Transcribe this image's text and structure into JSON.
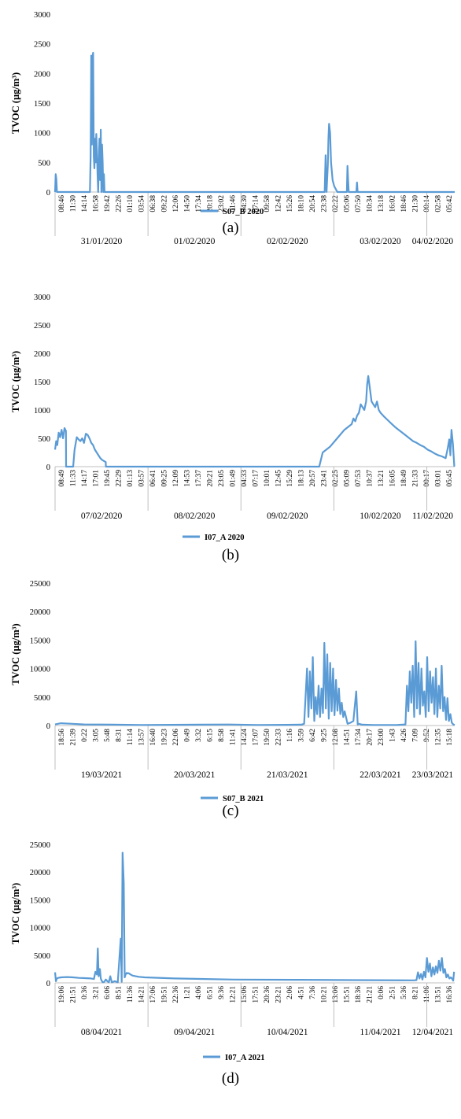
{
  "chart_data": [
    {
      "type": "line",
      "ylabel": "TVOC (µg/m³)",
      "ylim": [
        0,
        3000
      ],
      "yticks": [
        "0",
        "500",
        "1000",
        "1500",
        "2000",
        "2500",
        "3000"
      ],
      "x_hours": [
        "08:46",
        "11:30",
        "14:14",
        "16:58",
        "19:42",
        "22:26",
        "01:10",
        "03:54",
        "06:38",
        "09:22",
        "12:06",
        "14:50",
        "17:34",
        "20:18",
        "23:02",
        "01:46",
        "04:30",
        "07:14",
        "09:58",
        "12:42",
        "15:26",
        "18:10",
        "20:54",
        "23:38",
        "02:22",
        "05:06",
        "07:50",
        "10:34",
        "13:18",
        "16:02",
        "18:46",
        "21:30",
        "00:14",
        "02:58",
        "05:42"
      ],
      "x_dates": [
        "31/01/2020",
        "01/02/2020",
        "02/02/2020",
        "03/02/2020",
        "04/02/2020"
      ],
      "series": [
        {
          "name": "S07_B 2020",
          "color": "#5b9bd5",
          "x": [
            0,
            0.2,
            0.4,
            0.6,
            11,
            11.2,
            11.4,
            11.6,
            11.8,
            12,
            12.1,
            12.2,
            12.4,
            12.6,
            12.8,
            13,
            13.2,
            13.4,
            13.6,
            13.8,
            14,
            14.2,
            14.4,
            14.6,
            14.8,
            15,
            15.2,
            15.4,
            15.6,
            16,
            17,
            24,
            40,
            60,
            84,
            85,
            85.3,
            85.6,
            86,
            86.2,
            86.4,
            86.7,
            87,
            87.5,
            88,
            89,
            92,
            92.2,
            92.4,
            92.6,
            95,
            95.2,
            95.4,
            100,
            110,
            126
          ],
          "y": [
            0,
            300,
            220,
            0,
            0,
            600,
            2300,
            800,
            2280,
            2350,
            1500,
            600,
            400,
            900,
            500,
            980,
            700,
            300,
            0,
            500,
            900,
            200,
            1050,
            0,
            800,
            500,
            0,
            300,
            0,
            0,
            0,
            0,
            0,
            0,
            0,
            0,
            620,
            0,
            450,
            900,
            1150,
            1000,
            500,
            200,
            100,
            0,
            0,
            440,
            200,
            0,
            0,
            160,
            0,
            0,
            0,
            0
          ]
        }
      ]
    },
    {
      "type": "line",
      "ylabel": "TVOC (µg/m³)",
      "ylim": [
        0,
        3000
      ],
      "yticks": [
        "0",
        "500",
        "1000",
        "1500",
        "2000",
        "2500",
        "3000"
      ],
      "x_hours": [
        "08:49",
        "11:33",
        "14:17",
        "17:01",
        "19:45",
        "22:29",
        "01:13",
        "03:57",
        "06:41",
        "09:25",
        "12:09",
        "14:53",
        "17:37",
        "20:21",
        "23:05",
        "01:49",
        "04:33",
        "07:17",
        "10:01",
        "12:45",
        "15:29",
        "18:13",
        "20:57",
        "23:41",
        "02:25",
        "05:09",
        "07:53",
        "10:37",
        "13:21",
        "16:05",
        "18:49",
        "21:33",
        "00:17",
        "03:01",
        "05:45"
      ],
      "x_dates": [
        "07/02/2020",
        "08/02/2020",
        "09/02/2020",
        "10/02/2020",
        "11/02/2020"
      ],
      "series": [
        {
          "name": "I07_A 2020",
          "color": "#5b9bd5",
          "x": [
            0,
            0.3,
            0.6,
            1,
            1.4,
            1.8,
            2.2,
            2.6,
            3,
            3.05,
            5,
            5.4,
            6,
            6.5,
            7,
            7.5,
            8,
            8.5,
            9,
            9.5,
            10,
            10.5,
            11,
            11.5,
            12,
            12.5,
            13,
            13.5,
            14,
            14.05,
            20,
            40,
            60,
            72,
            73,
            73.05,
            74,
            76,
            78,
            80,
            82,
            82.5,
            83,
            83.5,
            84,
            84.5,
            85,
            85.5,
            86,
            86.3,
            86.6,
            87,
            87.5,
            88,
            88.5,
            89,
            89.5,
            90,
            91,
            92,
            93,
            94,
            95,
            96,
            97,
            98,
            99,
            100,
            101,
            102,
            103,
            104,
            105,
            106,
            107,
            108,
            108.5,
            109,
            109.3,
            109.6,
            110,
            110.4
          ],
          "y": [
            300,
            450,
            380,
            600,
            520,
            650,
            500,
            680,
            630,
            0,
            0,
            300,
            520,
            480,
            450,
            500,
            420,
            580,
            560,
            500,
            420,
            380,
            300,
            250,
            200,
            150,
            120,
            100,
            80,
            0,
            0,
            0,
            0,
            0,
            0,
            0,
            250,
            350,
            500,
            650,
            750,
            850,
            800,
            900,
            950,
            1100,
            1050,
            1000,
            1150,
            1450,
            1600,
            1400,
            1150,
            1100,
            1050,
            1150,
            1000,
            950,
            880,
            820,
            760,
            700,
            650,
            600,
            550,
            500,
            450,
            420,
            380,
            350,
            300,
            270,
            230,
            200,
            180,
            150,
            300,
            480,
            200,
            650,
            400,
            0
          ]
        }
      ]
    },
    {
      "type": "line",
      "ylabel": "TVOC (µg/m³)",
      "ylim": [
        0,
        25000
      ],
      "yticks": [
        "0",
        "5000",
        "10000",
        "15000",
        "20000",
        "25000"
      ],
      "x_hours": [
        "18:56",
        "21:39",
        "0:22",
        "3:05",
        "5:48",
        "8:31",
        "11:14",
        "13:57",
        "16:40",
        "19:23",
        "22:06",
        "0:49",
        "3:32",
        "6:15",
        "8:58",
        "11:41",
        "14:24",
        "17:07",
        "19:50",
        "22:33",
        "1:16",
        "3:59",
        "6:42",
        "9:25",
        "12:08",
        "14:51",
        "17:34",
        "20:17",
        "23:00",
        "1:43",
        "4:26",
        "7:09",
        "9:52",
        "12:35",
        "15:18"
      ],
      "x_dates": [
        "19/03/2021",
        "20/03/2021",
        "21/03/2021",
        "22/03/2021",
        "23/03/2021"
      ],
      "series": [
        {
          "name": "S07_B 2021",
          "color": "#5b9bd5",
          "x": [
            0,
            2,
            6,
            10,
            20,
            30,
            40,
            50,
            60,
            70,
            80,
            85,
            86,
            87,
            87.5,
            88,
            88.5,
            89,
            89.5,
            90,
            90.5,
            91,
            91.5,
            92,
            92.5,
            93,
            93.5,
            94,
            94.5,
            95,
            95.5,
            96,
            96.5,
            97,
            97.5,
            98,
            98.5,
            99,
            99.5,
            100,
            101,
            102,
            103,
            104,
            104.5,
            105,
            106,
            110,
            115,
            118,
            121,
            121.5,
            122,
            122.5,
            123,
            123.5,
            124,
            124.5,
            125,
            125.5,
            126,
            126.5,
            127,
            127.5,
            128,
            128.5,
            129,
            129.5,
            130,
            130.5,
            131,
            131.5,
            132,
            132.5,
            133,
            133.5,
            134,
            134.5,
            135,
            135.5,
            136,
            136.5,
            137,
            137.5,
            138
          ],
          "y": [
            200,
            400,
            300,
            200,
            150,
            100,
            120,
            150,
            180,
            100,
            120,
            150,
            300,
            10000,
            1500,
            9500,
            3000,
            12000,
            800,
            5000,
            2000,
            7000,
            1500,
            6500,
            2200,
            14500,
            3000,
            12500,
            1200,
            11000,
            2500,
            10000,
            1800,
            8000,
            2600,
            6500,
            2000,
            4000,
            1500,
            2500,
            300,
            500,
            800,
            6000,
            200,
            300,
            150,
            100,
            100,
            100,
            200,
            7000,
            2500,
            9500,
            4000,
            10500,
            1500,
            14800,
            3000,
            11000,
            2000,
            10000,
            3500,
            6000,
            1500,
            12000,
            2500,
            9500,
            4000,
            8500,
            2000,
            10000,
            1500,
            7000,
            3000,
            10500,
            2500,
            5000,
            1000,
            4800,
            800,
            2000,
            500,
            200,
            100
          ]
        }
      ]
    },
    {
      "type": "line",
      "ylabel": "TVOC (µg/m³)",
      "ylim": [
        0,
        25000
      ],
      "yticks": [
        "0",
        "5000",
        "10000",
        "15000",
        "20000",
        "25000"
      ],
      "x_hours": [
        "19:06",
        "21:51",
        "0:36",
        "3:21",
        "6:06",
        "8:51",
        "11:36",
        "14:21",
        "17:06",
        "19:51",
        "22:36",
        "1:21",
        "4:06",
        "6:51",
        "9:36",
        "12:21",
        "15:06",
        "17:51",
        "20:36",
        "23:21",
        "2:06",
        "4:51",
        "7:36",
        "10:21",
        "13:06",
        "15:51",
        "18:36",
        "21:21",
        "0:06",
        "2:51",
        "5:36",
        "8:21",
        "11:06",
        "13:51",
        "16:36"
      ],
      "x_dates": [
        "08/04/2021",
        "09/04/2021",
        "10/04/2021",
        "11/04/2021",
        "12/04/2021"
      ],
      "series": [
        {
          "name": "I07_A 2021",
          "color": "#5b9bd5",
          "x": [
            0,
            0.3,
            0.6,
            1,
            2,
            4,
            6,
            8,
            10,
            12,
            13,
            13.5,
            14,
            14.3,
            14.6,
            15,
            15.3,
            15.6,
            16,
            16.5,
            17,
            17.5,
            18,
            18.5,
            19,
            20,
            21,
            22,
            22.3,
            22.6,
            23,
            23.3,
            23.6,
            24,
            24.3,
            24.6,
            25,
            25.3,
            25.6,
            26,
            27,
            28,
            30,
            40,
            60,
            80,
            100,
            120,
            121,
            121.5,
            122,
            122.5,
            123,
            123.5,
            124,
            124.5,
            125,
            125.5,
            126,
            126.5,
            127,
            127.5,
            128,
            128.5,
            129,
            129.5,
            130,
            130.5,
            131,
            131.5,
            132,
            132.5,
            133,
            133.3,
            133.6
          ],
          "y": [
            1900,
            300,
            800,
            900,
            1000,
            1050,
            1000,
            900,
            850,
            800,
            700,
            2000,
            1500,
            6200,
            1200,
            2500,
            800,
            400,
            100,
            200,
            600,
            300,
            100,
            1200,
            100,
            300,
            100,
            8000,
            200,
            23500,
            18000,
            1000,
            1500,
            1800,
            1700,
            1750,
            1600,
            1500,
            1400,
            1300,
            1200,
            1100,
            1000,
            800,
            600,
            550,
            500,
            450,
            500,
            1900,
            800,
            1600,
            600,
            2000,
            1000,
            4500,
            2000,
            3500,
            1200,
            2800,
            1500,
            3000,
            1800,
            4000,
            2200,
            4500,
            1800,
            2500,
            1000,
            1500,
            800,
            1000,
            700,
            400,
            2000
          ]
        }
      ]
    }
  ],
  "captions": [
    "(a)",
    "(b)",
    "(c)",
    "(d)"
  ]
}
